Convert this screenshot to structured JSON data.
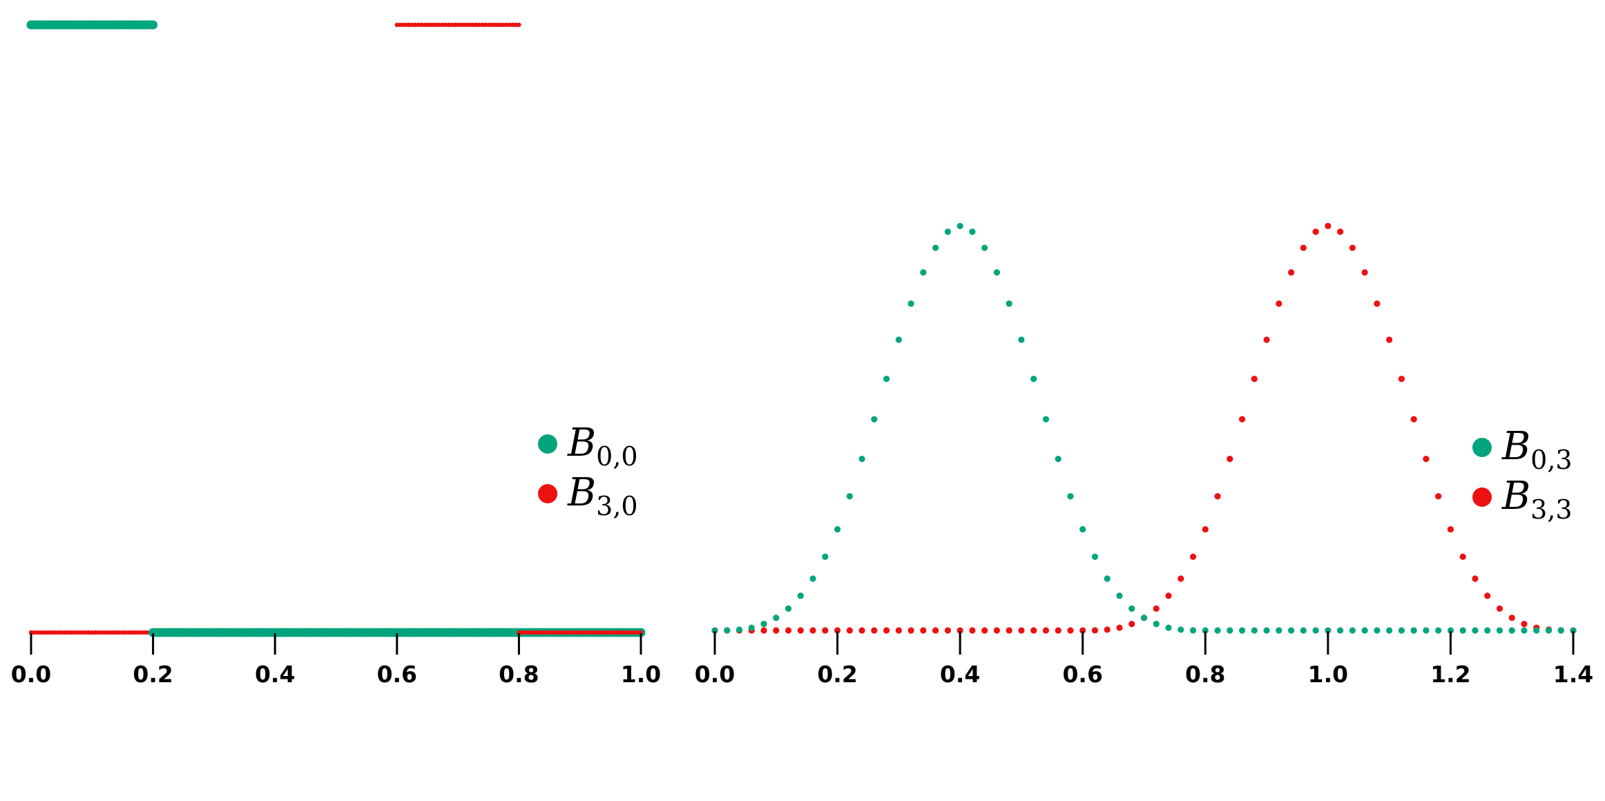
{
  "chart_data": [
    {
      "type": "scatter",
      "title": "",
      "xlabel": "",
      "ylabel": "",
      "xlim": [
        0.0,
        1.0
      ],
      "ylim": [
        0,
        1
      ],
      "x_ticks": [
        "0.0",
        "0.2",
        "0.4",
        "0.6",
        "0.8",
        "1.0"
      ],
      "grid": false,
      "legend_position": "right",
      "series": [
        {
          "name": "B_{0,0}",
          "legend_main": "B",
          "legend_sub": "0,0",
          "color": "#00a57e",
          "segments": [
            {
              "x": [
                0.0,
                0.2
              ],
              "y": 1
            },
            {
              "x": [
                0.2,
                1.0
              ],
              "y": 0
            }
          ]
        },
        {
          "name": "B_{3,0}",
          "legend_main": "B",
          "legend_sub": "3,0",
          "color": "#ee1111",
          "segments": [
            {
              "x": [
                0.0,
                0.6
              ],
              "y": 0
            },
            {
              "x": [
                0.6,
                0.8
              ],
              "y": 1
            },
            {
              "x": [
                0.8,
                1.0
              ],
              "y": 0
            }
          ]
        }
      ]
    },
    {
      "type": "scatter",
      "title": "",
      "xlabel": "",
      "ylabel": "",
      "xlim": [
        0.0,
        1.4
      ],
      "ylim": [
        0,
        0.667
      ],
      "x_ticks": [
        "0.0",
        "0.2",
        "0.4",
        "0.6",
        "0.8",
        "1.0",
        "1.2",
        "1.4"
      ],
      "grid": false,
      "legend_position": "right",
      "series": [
        {
          "name": "B_{0,3}",
          "legend_main": "B",
          "legend_sub": "0,3",
          "color": "#00a57e",
          "basis": "cubic-bspline",
          "support": [
            0.0,
            0.8
          ],
          "peak": {
            "x": 0.4,
            "y": 0.667
          }
        },
        {
          "name": "B_{3,3}",
          "legend_main": "B",
          "legend_sub": "3,3",
          "color": "#ee1111",
          "basis": "cubic-bspline",
          "support": [
            0.6,
            1.4
          ],
          "peak": {
            "x": 1.0,
            "y": 0.667
          }
        }
      ]
    }
  ]
}
